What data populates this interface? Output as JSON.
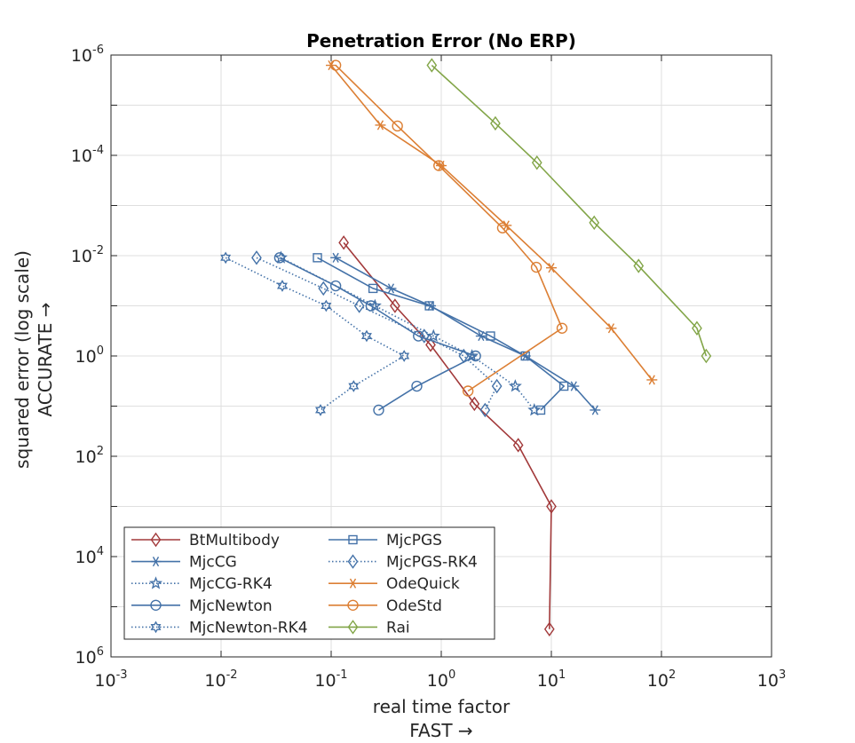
{
  "chart_data": {
    "type": "line",
    "title": "Penetration Error (No ERP)",
    "xlabel": [
      "real time factor",
      "FAST →"
    ],
    "ylabel": [
      "squared error (log scale)",
      "ACCURATE →"
    ],
    "x_scale": "log",
    "y_scale": "log",
    "y_direction": "reversed",
    "xlim": [
      0.001,
      1000
    ],
    "ylim": [
      1e-06,
      1000000.0
    ],
    "x_ticks": [
      {
        "base": "10",
        "exp": "-3"
      },
      {
        "base": "10",
        "exp": "-2"
      },
      {
        "base": "10",
        "exp": "-1"
      },
      {
        "base": "10",
        "exp": "0"
      },
      {
        "base": "10",
        "exp": "1"
      },
      {
        "base": "10",
        "exp": "2"
      },
      {
        "base": "10",
        "exp": "3"
      }
    ],
    "y_ticks": [
      {
        "base": "10",
        "exp": "-6"
      },
      {
        "base": "10",
        "exp": "-4"
      },
      {
        "base": "10",
        "exp": "-2"
      },
      {
        "base": "10",
        "exp": "0"
      },
      {
        "base": "10",
        "exp": "2"
      },
      {
        "base": "10",
        "exp": "4"
      },
      {
        "base": "10",
        "exp": "6"
      }
    ],
    "grid": true,
    "legend_position": "bottom-left",
    "legend_columns": 2,
    "series": [
      {
        "name": "BtMultibody",
        "color": "#a2393a",
        "marker": "diamond",
        "dash": "solid",
        "x": [
          0.13,
          0.38,
          0.8,
          2.0,
          5.0,
          10.0,
          9.6
        ],
        "y": [
          0.0055,
          0.1,
          0.6,
          9.0,
          60.0,
          1000.0,
          280000.0
        ]
      },
      {
        "name": "MjcCG",
        "color": "#4472a8",
        "marker": "asterisk",
        "dash": "solid",
        "x": [
          0.11,
          0.35,
          0.8,
          2.3,
          5.8,
          16.0,
          25.0
        ],
        "y": [
          0.011,
          0.045,
          0.1,
          0.4,
          1.0,
          4.0,
          12.0
        ]
      },
      {
        "name": "MjcCG-RK4",
        "color": "#4472a8",
        "marker": "star",
        "dash": "dotted",
        "x": [
          0.035,
          0.25,
          0.85,
          1.9,
          4.7,
          7.0
        ],
        "y": [
          0.011,
          0.1,
          0.4,
          1.0,
          4.0,
          12.0
        ]
      },
      {
        "name": "MjcNewton",
        "color": "#4472a8",
        "marker": "circle",
        "dash": "solid",
        "x": [
          0.034,
          0.11,
          0.23,
          0.62,
          2.05,
          0.6,
          0.27
        ],
        "y": [
          0.011,
          0.04,
          0.1,
          0.4,
          1.0,
          4.0,
          12.0
        ]
      },
      {
        "name": "MjcNewton-RK4",
        "color": "#4472a8",
        "marker": "hexagram",
        "dash": "dotted",
        "x": [
          0.011,
          0.036,
          0.09,
          0.21,
          0.46,
          0.16,
          0.08
        ],
        "y": [
          0.011,
          0.04,
          0.1,
          0.4,
          1.0,
          4.0,
          12.0
        ]
      },
      {
        "name": "MjcPGS",
        "color": "#4472a8",
        "marker": "square",
        "dash": "solid",
        "x": [
          0.075,
          0.24,
          0.78,
          2.8,
          5.8,
          13.0,
          8.0
        ],
        "y": [
          0.011,
          0.045,
          0.1,
          0.4,
          1.0,
          4.0,
          12.0
        ]
      },
      {
        "name": "MjcPGS-RK4",
        "color": "#4472a8",
        "marker": "diamond",
        "dash": "dotted",
        "x": [
          0.021,
          0.085,
          0.18,
          0.7,
          1.6,
          3.2,
          2.5
        ],
        "y": [
          0.011,
          0.045,
          0.1,
          0.4,
          1.0,
          4.0,
          12.0
        ]
      },
      {
        "name": "OdeQuick",
        "color": "#dc7f34",
        "marker": "asterisk",
        "dash": "solid",
        "x": [
          0.1,
          0.28,
          1.0,
          3.9,
          10.0,
          35.0,
          82.0
        ],
        "y": [
          1.6e-06,
          2.5e-05,
          0.00016,
          0.0025,
          0.0175,
          0.28,
          3.0
        ]
      },
      {
        "name": "OdeStd",
        "color": "#dc7f34",
        "marker": "circle",
        "dash": "solid",
        "x": [
          0.11,
          0.4,
          0.95,
          3.6,
          7.3,
          12.5,
          1.75
        ],
        "y": [
          1.6e-06,
          2.6e-05,
          0.00016,
          0.0028,
          0.017,
          0.28,
          5.0
        ]
      },
      {
        "name": "Rai",
        "color": "#82a548",
        "marker": "diamond",
        "dash": "solid",
        "x": [
          0.82,
          3.1,
          7.4,
          24.5,
          62.0,
          210.0,
          255.0
        ],
        "y": [
          1.6e-06,
          2.3e-05,
          0.00014,
          0.0022,
          0.016,
          0.28,
          1.0
        ]
      }
    ]
  }
}
